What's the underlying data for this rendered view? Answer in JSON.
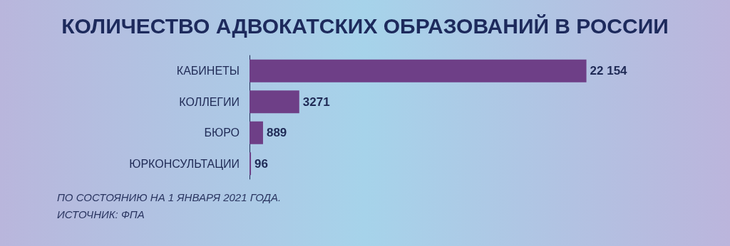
{
  "chart_data": {
    "type": "bar",
    "orientation": "horizontal",
    "title": "КОЛИЧЕСТВО АДВОКАТСКИХ ОБРАЗОВАНИЙ В РОССИИ",
    "categories": [
      "КАБИНЕТЫ",
      "КОЛЛЕГИИ",
      "БЮРО",
      "ЮРКОНСУЛЬТАЦИИ"
    ],
    "values": [
      22154,
      3271,
      889,
      96
    ],
    "value_labels": [
      "22 154",
      "3271",
      "889",
      "96"
    ],
    "color": "#6e3f87",
    "annotations": [
      "ПО СОСТОЯНИЮ НА 1 ЯНВАРЯ 2021 ГОДА.",
      "ИСТОЧНИК: ФПА"
    ]
  }
}
